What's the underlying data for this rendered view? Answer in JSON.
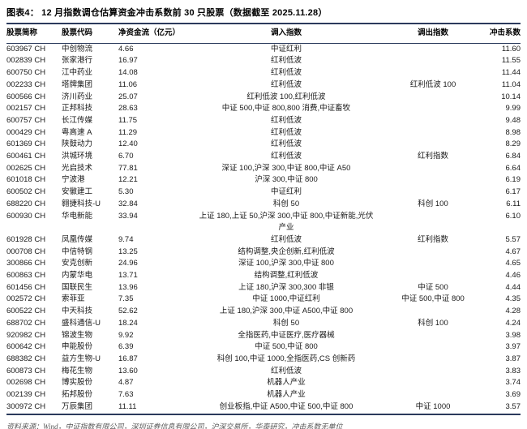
{
  "title": "图表4：  12 月指数调仓估算资金冲击系数前 30 只股票（数据截至 2025.11.28）",
  "colors": {
    "rule": "#2b3a5c",
    "text": "#1a1a1a",
    "footer_text": "#595959"
  },
  "table": {
    "headers": [
      "股票简称",
      "股票代码",
      "净资金流（亿元）",
      "调入指数",
      "调出指数",
      "冲击系数"
    ],
    "rows": [
      {
        "code": "603967 CH",
        "name": "中创物流",
        "flow": "4.66",
        "in": "中证红利",
        "out": "",
        "impact": "11.60"
      },
      {
        "code": "002839 CH",
        "name": "张家港行",
        "flow": "16.97",
        "in": "红利低波",
        "out": "",
        "impact": "11.55"
      },
      {
        "code": "600750 CH",
        "name": "江中药业",
        "flow": "14.08",
        "in": "红利低波",
        "out": "",
        "impact": "11.44"
      },
      {
        "code": "002233 CH",
        "name": "塔牌集团",
        "flow": "11.06",
        "in": "红利低波",
        "out": "红利低波 100",
        "impact": "11.04"
      },
      {
        "code": "600566 CH",
        "name": "济川药业",
        "flow": "25.07",
        "in": "红利低波 100,红利低波",
        "out": "",
        "impact": "10.14"
      },
      {
        "code": "002157 CH",
        "name": "正邦科技",
        "flow": "28.63",
        "in": "中证 500,中证 800,800 消费,中证畜牧",
        "out": "",
        "impact": "9.99"
      },
      {
        "code": "600757 CH",
        "name": "长江传媒",
        "flow": "11.75",
        "in": "红利低波",
        "out": "",
        "impact": "9.48"
      },
      {
        "code": "000429 CH",
        "name": "粤高速 A",
        "flow": "11.29",
        "in": "红利低波",
        "out": "",
        "impact": "8.98"
      },
      {
        "code": "601369 CH",
        "name": "陕鼓动力",
        "flow": "12.40",
        "in": "红利低波",
        "out": "",
        "impact": "8.29"
      },
      {
        "code": "600461 CH",
        "name": "洪城环境",
        "flow": "6.70",
        "in": "红利低波",
        "out": "红利指数",
        "impact": "6.84"
      },
      {
        "code": "002625 CH",
        "name": "光启技术",
        "flow": "77.81",
        "in": "深证 100,沪深 300,中证 800,中证 A50",
        "out": "",
        "impact": "6.64"
      },
      {
        "code": "601018 CH",
        "name": "宁波港",
        "flow": "12.21",
        "in": "沪深 300,中证 800",
        "out": "",
        "impact": "6.19"
      },
      {
        "code": "600502 CH",
        "name": "安徽建工",
        "flow": "5.30",
        "in": "中证红利",
        "out": "",
        "impact": "6.17"
      },
      {
        "code": "688220 CH",
        "name": "翱捷科技-U",
        "flow": "32.84",
        "in": "科创 50",
        "out": "科创 100",
        "impact": "6.11"
      },
      {
        "code": "600930 CH",
        "name": "华电新能",
        "flow": "33.94",
        "in": "上证 180,上证 50,沪深 300,中证 800,中证新能,光伏产业",
        "out": "",
        "impact": "6.10"
      },
      {
        "code": "601928 CH",
        "name": "凤凰传媒",
        "flow": "9.74",
        "in": "红利低波",
        "out": "红利指数",
        "impact": "5.57"
      },
      {
        "code": "000708 CH",
        "name": "中信特钢",
        "flow": "13.25",
        "in": "结构调整,央企创新,红利低波",
        "out": "",
        "impact": "4.67"
      },
      {
        "code": "300866 CH",
        "name": "安克创新",
        "flow": "24.96",
        "in": "深证 100,沪深 300,中证 800",
        "out": "",
        "impact": "4.65"
      },
      {
        "code": "600863 CH",
        "name": "内蒙华电",
        "flow": "13.71",
        "in": "结构调整,红利低波",
        "out": "",
        "impact": "4.46"
      },
      {
        "code": "601456 CH",
        "name": "国联民生",
        "flow": "13.96",
        "in": "上证 180,沪深 300,300 非银",
        "out": "中证 500",
        "impact": "4.44"
      },
      {
        "code": "002572 CH",
        "name": "索菲亚",
        "flow": "7.35",
        "in": "中证 1000,中证红利",
        "out": "中证 500,中证 800",
        "impact": "4.35"
      },
      {
        "code": "600522 CH",
        "name": "中天科技",
        "flow": "52.62",
        "in": "上证 180,沪深 300,中证 A500,中证 800",
        "out": "",
        "impact": "4.28"
      },
      {
        "code": "688702 CH",
        "name": "盛科通信-U",
        "flow": "18.24",
        "in": "科创 50",
        "out": "科创 100",
        "impact": "4.24"
      },
      {
        "code": "920982 CH",
        "name": "锦波生物",
        "flow": "9.92",
        "in": "全指医药,中证医疗,医疗器械",
        "out": "",
        "impact": "3.98"
      },
      {
        "code": "600642 CH",
        "name": "申能股份",
        "flow": "6.39",
        "in": "中证 500,中证 800",
        "out": "",
        "impact": "3.97"
      },
      {
        "code": "688382 CH",
        "name": "益方生物-U",
        "flow": "16.87",
        "in": "科创 100,中证 1000,全指医药,CS 创新药",
        "out": "",
        "impact": "3.87"
      },
      {
        "code": "600873 CH",
        "name": "梅花生物",
        "flow": "13.60",
        "in": "红利低波",
        "out": "",
        "impact": "3.83"
      },
      {
        "code": "002698 CH",
        "name": "博实股份",
        "flow": "4.87",
        "in": "机器人产业",
        "out": "",
        "impact": "3.74"
      },
      {
        "code": "002139 CH",
        "name": "拓邦股份",
        "flow": "7.63",
        "in": "机器人产业",
        "out": "",
        "impact": "3.69"
      },
      {
        "code": "300972 CH",
        "name": "万辰集团",
        "flow": "11.11",
        "in": "创业板指,中证 A500,中证 500,中证 800",
        "out": "中证 1000",
        "impact": "3.57"
      }
    ]
  },
  "footer": "资料来源：Wind，中证指数有限公司，深圳证券信息有限公司，沪深交易所，华泰研究，冲击系数无单位"
}
